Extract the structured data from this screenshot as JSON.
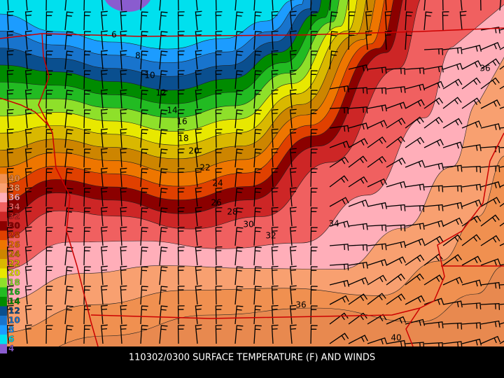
{
  "map": {
    "title": "110302/0300 SURFACE TEMPERATURE (F) AND WINDS",
    "legend": [
      {
        "label": "4",
        "color": "#8a5ccf"
      },
      {
        "label": "6",
        "color": "#00e0ee"
      },
      {
        "label": "8",
        "color": "#1c9cff"
      },
      {
        "label": "10",
        "color": "#1874cd"
      },
      {
        "label": "12",
        "color": "#0a4f8f"
      },
      {
        "label": "14",
        "color": "#008b00"
      },
      {
        "label": "16",
        "color": "#22bb22"
      },
      {
        "label": "18",
        "color": "#8ee02a"
      },
      {
        "label": "20",
        "color": "#e8e800"
      },
      {
        "label": "22",
        "color": "#d9b800"
      },
      {
        "label": "24",
        "color": "#cd8500"
      },
      {
        "label": "26",
        "color": "#ee7600"
      },
      {
        "label": "28",
        "color": "#e04000"
      },
      {
        "label": "30",
        "color": "#8b0000"
      },
      {
        "label": "32",
        "color": "#cd2626"
      },
      {
        "label": "34",
        "color": "#f06060"
      },
      {
        "label": "36",
        "color": "#ffaeb9"
      },
      {
        "label": "38",
        "color": "#f8a070"
      },
      {
        "label": "40",
        "color": "#f09050"
      }
    ],
    "contour_labels": [
      "6",
      "8",
      "10",
      "12",
      "14",
      "16",
      "18",
      "20",
      "22",
      "24",
      "26",
      "28",
      "30",
      "32",
      "34",
      "36",
      "36",
      "40"
    ]
  }
}
